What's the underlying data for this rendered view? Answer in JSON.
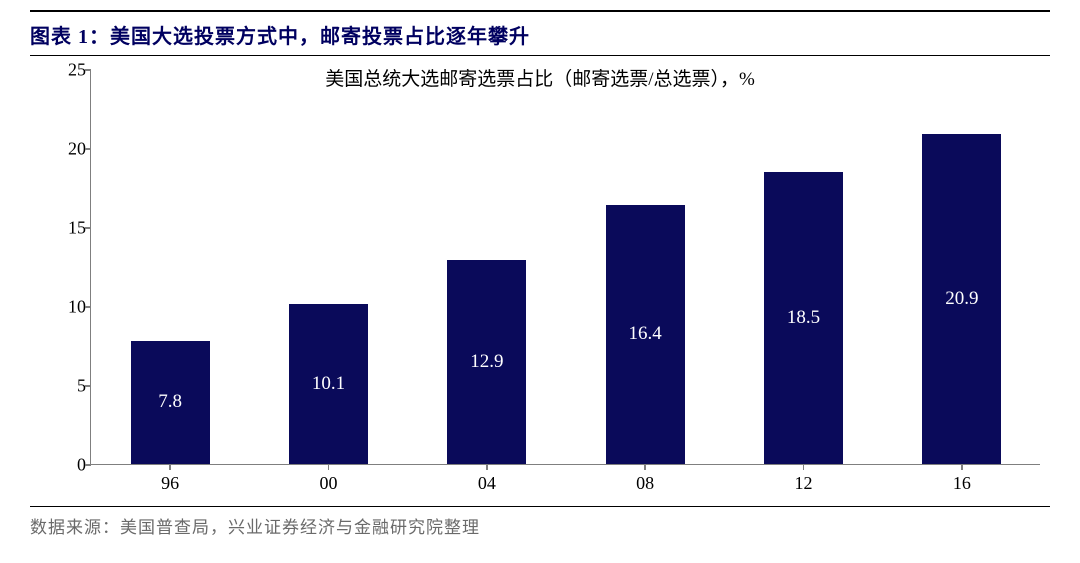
{
  "figure": {
    "title": "图表 1：美国大选投票方式中，邮寄投票占比逐年攀升",
    "subtitle": "美国总统大选邮寄选票占比（邮寄选票/总选票），%",
    "source": "数据来源：美国普查局，兴业证券经济与金融研究院整理"
  },
  "chart": {
    "type": "bar",
    "categories": [
      "96",
      "00",
      "04",
      "08",
      "12",
      "16"
    ],
    "values": [
      7.8,
      10.1,
      12.9,
      16.4,
      18.5,
      20.9
    ],
    "value_labels": [
      "7.8",
      "10.1",
      "12.9",
      "16.4",
      "18.5",
      "20.9"
    ],
    "bar_color": "#0a0a5a",
    "label_color": "#ffffff",
    "ylim": [
      0,
      25
    ],
    "yticks": [
      0,
      5,
      10,
      15,
      20,
      25
    ],
    "ytick_labels": [
      "0",
      "5",
      "10",
      "15",
      "20",
      "25"
    ],
    "axis_color": "#7f7f7f",
    "background_color": "#ffffff",
    "title_color": "#000060",
    "bar_width_ratio": 0.5,
    "font_family_numbers": "Times New Roman",
    "title_fontsize": 20,
    "subtitle_fontsize": 19,
    "tick_fontsize": 18,
    "barlabel_fontsize": 19,
    "source_fontsize": 17,
    "source_color": "#6a6a6a"
  }
}
